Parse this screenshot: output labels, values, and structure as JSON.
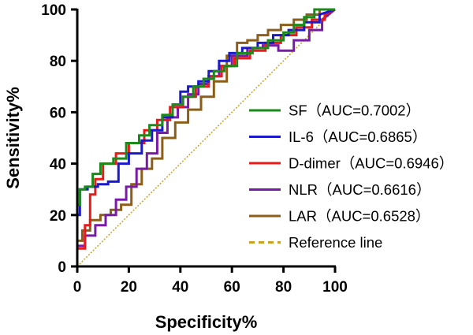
{
  "chart_data": {
    "type": "line",
    "xlabel": "Specificity%",
    "ylabel": "Sensitivity%",
    "xlim": [
      0,
      100
    ],
    "ylim": [
      0,
      100
    ],
    "x_ticks": [
      "0",
      "20",
      "40",
      "60",
      "80",
      "100"
    ],
    "y_ticks": [
      "0",
      "20",
      "40",
      "60",
      "80",
      "100"
    ],
    "grid": false,
    "legend_position": "right",
    "series": [
      {
        "name": "SF（AUC=0.7002）",
        "color": "#1a8a1a",
        "x": [
          0,
          0,
          1,
          1,
          3,
          3,
          6,
          6,
          9,
          9,
          14,
          14,
          19,
          19,
          24,
          24,
          28,
          28,
          33,
          33,
          37,
          37,
          41,
          41,
          45,
          45,
          49,
          49,
          53,
          53,
          57,
          57,
          62,
          62,
          68,
          68,
          74,
          74,
          80,
          80,
          84,
          84,
          88,
          88,
          92,
          92,
          96,
          96,
          100
        ],
        "y": [
          0,
          24,
          24,
          30,
          30,
          31,
          31,
          36,
          36,
          40,
          40,
          42,
          42,
          48,
          48,
          51,
          51,
          55,
          55,
          59,
          59,
          63,
          63,
          66,
          66,
          70,
          70,
          73,
          73,
          76,
          76,
          78,
          78,
          83,
          83,
          85,
          85,
          88,
          88,
          91,
          91,
          94,
          94,
          97,
          97,
          100,
          100,
          100,
          100
        ]
      },
      {
        "name": "IL-6（AUC=0.6865）",
        "color": "#1a1acc",
        "x": [
          0,
          0,
          1,
          1,
          4,
          4,
          8,
          8,
          12,
          12,
          16,
          16,
          20,
          20,
          25,
          25,
          29,
          29,
          33,
          33,
          37,
          37,
          40,
          40,
          43,
          43,
          47,
          47,
          51,
          51,
          55,
          55,
          59,
          59,
          64,
          64,
          70,
          70,
          76,
          76,
          82,
          82,
          88,
          88,
          94,
          94,
          100
        ],
        "y": [
          0,
          20,
          20,
          30,
          30,
          31,
          31,
          32,
          32,
          33,
          33,
          40,
          40,
          44,
          44,
          49,
          49,
          53,
          53,
          58,
          58,
          63,
          63,
          68,
          68,
          70,
          70,
          72,
          72,
          76,
          76,
          80,
          80,
          83,
          83,
          85,
          85,
          87,
          87,
          90,
          90,
          92,
          92,
          95,
          95,
          98,
          100
        ]
      },
      {
        "name": "D-dimer（AUC=0.6946）",
        "color": "#e81a1a",
        "x": [
          0,
          0,
          3,
          3,
          5,
          5,
          7,
          7,
          10,
          10,
          15,
          15,
          20,
          20,
          26,
          26,
          31,
          31,
          36,
          36,
          41,
          41,
          46,
          46,
          51,
          51,
          56,
          56,
          61,
          61,
          67,
          67,
          73,
          73,
          79,
          79,
          85,
          85,
          91,
          91,
          96,
          96,
          100
        ],
        "y": [
          0,
          7,
          7,
          16,
          16,
          28,
          28,
          34,
          34,
          40,
          40,
          44,
          44,
          48,
          48,
          53,
          53,
          57,
          57,
          62,
          62,
          66,
          66,
          70,
          70,
          74,
          74,
          78,
          78,
          81,
          81,
          84,
          84,
          87,
          87,
          90,
          90,
          93,
          93,
          96,
          96,
          98,
          100
        ]
      },
      {
        "name": "NLR（AUC=0.6616）",
        "color": "#7a1aa8",
        "x": [
          0,
          0,
          3,
          3,
          7,
          7,
          11,
          11,
          15,
          15,
          19,
          19,
          23,
          23,
          27,
          27,
          31,
          31,
          35,
          35,
          39,
          39,
          43,
          43,
          47,
          47,
          51,
          51,
          55,
          55,
          60,
          60,
          66,
          66,
          72,
          72,
          78,
          78,
          84,
          84,
          90,
          90,
          95,
          95,
          100
        ],
        "y": [
          0,
          8,
          8,
          12,
          12,
          16,
          16,
          20,
          20,
          26,
          26,
          31,
          31,
          38,
          38,
          44,
          44,
          52,
          52,
          58,
          58,
          62,
          62,
          67,
          67,
          71,
          71,
          74,
          74,
          78,
          78,
          82,
          82,
          85,
          85,
          86,
          86,
          84,
          84,
          88,
          88,
          92,
          92,
          96,
          100
        ]
      },
      {
        "name": "LAR（AUC=0.6528）",
        "color": "#8b5e1a",
        "x": [
          0,
          0,
          2,
          2,
          5,
          5,
          9,
          9,
          13,
          13,
          17,
          17,
          21,
          21,
          25,
          25,
          29,
          29,
          33,
          33,
          38,
          38,
          43,
          43,
          48,
          48,
          53,
          53,
          58,
          58,
          62,
          62,
          66,
          66,
          70,
          70,
          74,
          74,
          79,
          79,
          84,
          84,
          89,
          89,
          94,
          94,
          100
        ],
        "y": [
          0,
          10,
          10,
          14,
          14,
          18,
          18,
          20,
          20,
          22,
          22,
          24,
          24,
          32,
          32,
          38,
          38,
          42,
          42,
          50,
          50,
          56,
          56,
          61,
          61,
          66,
          66,
          72,
          72,
          82,
          82,
          87,
          87,
          88,
          88,
          90,
          90,
          92,
          92,
          94,
          94,
          96,
          96,
          98,
          98,
          100,
          100
        ]
      }
    ],
    "reference_line": {
      "name": "Reference line",
      "color": "#c9a227",
      "x": [
        0,
        100
      ],
      "y": [
        0,
        100
      ]
    }
  }
}
